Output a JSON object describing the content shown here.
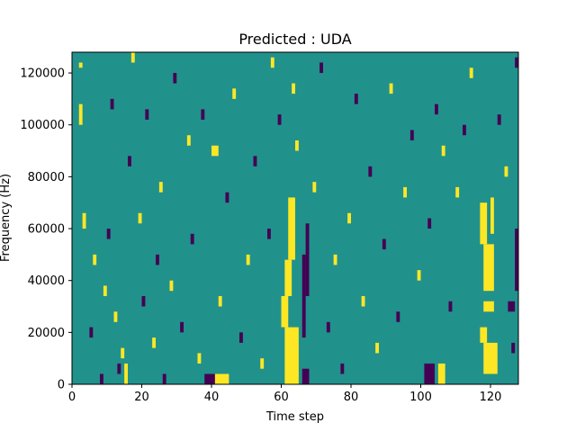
{
  "chart_data": {
    "type": "heatmap",
    "title": "Predicted : UDA",
    "xlabel": "Time step",
    "ylabel": "Frequency (Hz)",
    "xlim": [
      0,
      128
    ],
    "ylim": [
      0,
      128000
    ],
    "x_ticks": [
      0,
      20,
      40,
      60,
      80,
      100,
      120
    ],
    "y_ticks": [
      0,
      20000,
      40000,
      60000,
      80000,
      100000,
      120000
    ],
    "x_tick_labels": [
      "0",
      "20",
      "40",
      "60",
      "80",
      "100",
      "120"
    ],
    "y_tick_labels": [
      "0",
      "20000",
      "40000",
      "60000",
      "80000",
      "100000",
      "120000"
    ],
    "n_time_steps": 128,
    "n_freq_bins": 64,
    "bin_width_hz": 2000,
    "grid": false,
    "legend": "none",
    "value_levels": [
      -1,
      0,
      1
    ],
    "colors": {
      "background_value_0": "#21918c",
      "value_1": "#fde725",
      "value_minus_1": "#440154"
    },
    "cells": [
      {
        "t": 61,
        "f_start": 0,
        "f_end": 22000,
        "t_span": 4,
        "value": 1
      },
      {
        "t": 60,
        "f_start": 22000,
        "f_end": 34000,
        "t_span": 2,
        "value": 1
      },
      {
        "t": 61,
        "f_start": 34000,
        "f_end": 48000,
        "t_span": 2,
        "value": 1
      },
      {
        "t": 62,
        "f_start": 48000,
        "f_end": 72000,
        "t_span": 2,
        "value": 1
      },
      {
        "t": 66,
        "f_start": 0,
        "f_end": 6000,
        "t_span": 2,
        "value": -1
      },
      {
        "t": 66,
        "f_start": 18000,
        "f_end": 50000,
        "t_span": 1,
        "value": -1
      },
      {
        "t": 67,
        "f_start": 34000,
        "f_end": 62000,
        "t_span": 1,
        "value": -1
      },
      {
        "t": 118,
        "f_start": 4000,
        "f_end": 16000,
        "t_span": 4,
        "value": 1
      },
      {
        "t": 117,
        "f_start": 16000,
        "f_end": 22000,
        "t_span": 2,
        "value": 1
      },
      {
        "t": 118,
        "f_start": 28000,
        "f_end": 32000,
        "t_span": 3,
        "value": 1
      },
      {
        "t": 118,
        "f_start": 36000,
        "f_end": 54000,
        "t_span": 3,
        "value": 1
      },
      {
        "t": 117,
        "f_start": 54000,
        "f_end": 70000,
        "t_span": 2,
        "value": 1
      },
      {
        "t": 120,
        "f_start": 58000,
        "f_end": 72000,
        "t_span": 1,
        "value": 1
      },
      {
        "t": 127,
        "f_start": 36000,
        "f_end": 60000,
        "t_span": 1,
        "value": -1
      },
      {
        "t": 125,
        "f_start": 28000,
        "f_end": 32000,
        "t_span": 2,
        "value": -1
      },
      {
        "t": 101,
        "f_start": 0,
        "f_end": 8000,
        "t_span": 3,
        "value": -1
      },
      {
        "t": 105,
        "f_start": 0,
        "f_end": 8000,
        "t_span": 2,
        "value": 1
      },
      {
        "t": 38,
        "f_start": 0,
        "f_end": 4000,
        "t_span": 3,
        "value": -1
      },
      {
        "t": 41,
        "f_start": 0,
        "f_end": 4000,
        "t_span": 4,
        "value": 1
      },
      {
        "t": 40,
        "f_start": 88000,
        "f_end": 92000,
        "t_span": 2,
        "value": 1
      },
      {
        "t": 2,
        "f_start": 100000,
        "f_end": 108000,
        "t_span": 1,
        "value": 1
      },
      {
        "t": 2,
        "f_start": 122000,
        "f_end": 124000,
        "t_span": 1,
        "value": 1
      },
      {
        "t": 3,
        "f_start": 60000,
        "f_end": 66000,
        "t_span": 1,
        "value": 1
      },
      {
        "t": 5,
        "f_start": 18000,
        "f_end": 22000,
        "t_span": 1,
        "value": -1
      },
      {
        "t": 6,
        "f_start": 46000,
        "f_end": 50000,
        "t_span": 1,
        "value": 1
      },
      {
        "t": 8,
        "f_start": 0,
        "f_end": 4000,
        "t_span": 1,
        "value": -1
      },
      {
        "t": 9,
        "f_start": 34000,
        "f_end": 38000,
        "t_span": 1,
        "value": 1
      },
      {
        "t": 10,
        "f_start": 56000,
        "f_end": 60000,
        "t_span": 1,
        "value": -1
      },
      {
        "t": 11,
        "f_start": 106000,
        "f_end": 110000,
        "t_span": 1,
        "value": -1
      },
      {
        "t": 12,
        "f_start": 24000,
        "f_end": 28000,
        "t_span": 1,
        "value": 1
      },
      {
        "t": 13,
        "f_start": 4000,
        "f_end": 8000,
        "t_span": 1,
        "value": -1
      },
      {
        "t": 14,
        "f_start": 10000,
        "f_end": 14000,
        "t_span": 1,
        "value": 1
      },
      {
        "t": 15,
        "f_start": 0,
        "f_end": 8000,
        "t_span": 1,
        "value": 1
      },
      {
        "t": 16,
        "f_start": 84000,
        "f_end": 88000,
        "t_span": 1,
        "value": -1
      },
      {
        "t": 17,
        "f_start": 124000,
        "f_end": 128000,
        "t_span": 1,
        "value": 1
      },
      {
        "t": 19,
        "f_start": 62000,
        "f_end": 66000,
        "t_span": 1,
        "value": 1
      },
      {
        "t": 20,
        "f_start": 30000,
        "f_end": 34000,
        "t_span": 1,
        "value": -1
      },
      {
        "t": 21,
        "f_start": 102000,
        "f_end": 106000,
        "t_span": 1,
        "value": -1
      },
      {
        "t": 23,
        "f_start": 14000,
        "f_end": 18000,
        "t_span": 1,
        "value": 1
      },
      {
        "t": 24,
        "f_start": 46000,
        "f_end": 50000,
        "t_span": 1,
        "value": -1
      },
      {
        "t": 25,
        "f_start": 74000,
        "f_end": 78000,
        "t_span": 1,
        "value": 1
      },
      {
        "t": 26,
        "f_start": 0,
        "f_end": 4000,
        "t_span": 1,
        "value": -1
      },
      {
        "t": 28,
        "f_start": 36000,
        "f_end": 40000,
        "t_span": 1,
        "value": 1
      },
      {
        "t": 29,
        "f_start": 116000,
        "f_end": 120000,
        "t_span": 1,
        "value": -1
      },
      {
        "t": 31,
        "f_start": 20000,
        "f_end": 24000,
        "t_span": 1,
        "value": -1
      },
      {
        "t": 33,
        "f_start": 92000,
        "f_end": 96000,
        "t_span": 1,
        "value": 1
      },
      {
        "t": 34,
        "f_start": 54000,
        "f_end": 58000,
        "t_span": 1,
        "value": -1
      },
      {
        "t": 36,
        "f_start": 8000,
        "f_end": 12000,
        "t_span": 1,
        "value": 1
      },
      {
        "t": 37,
        "f_start": 102000,
        "f_end": 106000,
        "t_span": 1,
        "value": -1
      },
      {
        "t": 42,
        "f_start": 30000,
        "f_end": 34000,
        "t_span": 1,
        "value": 1
      },
      {
        "t": 44,
        "f_start": 70000,
        "f_end": 74000,
        "t_span": 1,
        "value": -1
      },
      {
        "t": 46,
        "f_start": 110000,
        "f_end": 114000,
        "t_span": 1,
        "value": 1
      },
      {
        "t": 48,
        "f_start": 16000,
        "f_end": 20000,
        "t_span": 1,
        "value": -1
      },
      {
        "t": 50,
        "f_start": 46000,
        "f_end": 50000,
        "t_span": 1,
        "value": 1
      },
      {
        "t": 52,
        "f_start": 84000,
        "f_end": 88000,
        "t_span": 1,
        "value": -1
      },
      {
        "t": 54,
        "f_start": 6000,
        "f_end": 10000,
        "t_span": 1,
        "value": 1
      },
      {
        "t": 56,
        "f_start": 56000,
        "f_end": 60000,
        "t_span": 1,
        "value": -1
      },
      {
        "t": 57,
        "f_start": 122000,
        "f_end": 126000,
        "t_span": 1,
        "value": 1
      },
      {
        "t": 59,
        "f_start": 100000,
        "f_end": 104000,
        "t_span": 1,
        "value": -1
      },
      {
        "t": 63,
        "f_start": 112000,
        "f_end": 116000,
        "t_span": 1,
        "value": 1
      },
      {
        "t": 64,
        "f_start": 90000,
        "f_end": 94000,
        "t_span": 1,
        "value": 1
      },
      {
        "t": 69,
        "f_start": 74000,
        "f_end": 78000,
        "t_span": 1,
        "value": 1
      },
      {
        "t": 71,
        "f_start": 120000,
        "f_end": 124000,
        "t_span": 1,
        "value": -1
      },
      {
        "t": 73,
        "f_start": 20000,
        "f_end": 24000,
        "t_span": 1,
        "value": -1
      },
      {
        "t": 75,
        "f_start": 46000,
        "f_end": 50000,
        "t_span": 1,
        "value": 1
      },
      {
        "t": 77,
        "f_start": 4000,
        "f_end": 8000,
        "t_span": 1,
        "value": -1
      },
      {
        "t": 79,
        "f_start": 62000,
        "f_end": 66000,
        "t_span": 1,
        "value": 1
      },
      {
        "t": 81,
        "f_start": 108000,
        "f_end": 112000,
        "t_span": 1,
        "value": -1
      },
      {
        "t": 83,
        "f_start": 30000,
        "f_end": 34000,
        "t_span": 1,
        "value": 1
      },
      {
        "t": 85,
        "f_start": 80000,
        "f_end": 84000,
        "t_span": 1,
        "value": -1
      },
      {
        "t": 87,
        "f_start": 12000,
        "f_end": 16000,
        "t_span": 1,
        "value": 1
      },
      {
        "t": 89,
        "f_start": 52000,
        "f_end": 56000,
        "t_span": 1,
        "value": -1
      },
      {
        "t": 91,
        "f_start": 112000,
        "f_end": 116000,
        "t_span": 1,
        "value": 1
      },
      {
        "t": 93,
        "f_start": 24000,
        "f_end": 28000,
        "t_span": 1,
        "value": -1
      },
      {
        "t": 95,
        "f_start": 72000,
        "f_end": 76000,
        "t_span": 1,
        "value": 1
      },
      {
        "t": 97,
        "f_start": 94000,
        "f_end": 98000,
        "t_span": 1,
        "value": -1
      },
      {
        "t": 99,
        "f_start": 40000,
        "f_end": 44000,
        "t_span": 1,
        "value": 1
      },
      {
        "t": 102,
        "f_start": 60000,
        "f_end": 64000,
        "t_span": 1,
        "value": -1
      },
      {
        "t": 104,
        "f_start": 104000,
        "f_end": 108000,
        "t_span": 1,
        "value": -1
      },
      {
        "t": 106,
        "f_start": 88000,
        "f_end": 92000,
        "t_span": 1,
        "value": 1
      },
      {
        "t": 108,
        "f_start": 28000,
        "f_end": 32000,
        "t_span": 1,
        "value": -1
      },
      {
        "t": 110,
        "f_start": 72000,
        "f_end": 76000,
        "t_span": 1,
        "value": 1
      },
      {
        "t": 112,
        "f_start": 96000,
        "f_end": 100000,
        "t_span": 1,
        "value": -1
      },
      {
        "t": 114,
        "f_start": 118000,
        "f_end": 122000,
        "t_span": 1,
        "value": 1
      },
      {
        "t": 122,
        "f_start": 100000,
        "f_end": 104000,
        "t_span": 1,
        "value": -1
      },
      {
        "t": 124,
        "f_start": 80000,
        "f_end": 84000,
        "t_span": 1,
        "value": 1
      },
      {
        "t": 126,
        "f_start": 12000,
        "f_end": 16000,
        "t_span": 1,
        "value": -1
      },
      {
        "t": 127,
        "f_start": 122000,
        "f_end": 126000,
        "t_span": 1,
        "value": -1
      }
    ]
  }
}
